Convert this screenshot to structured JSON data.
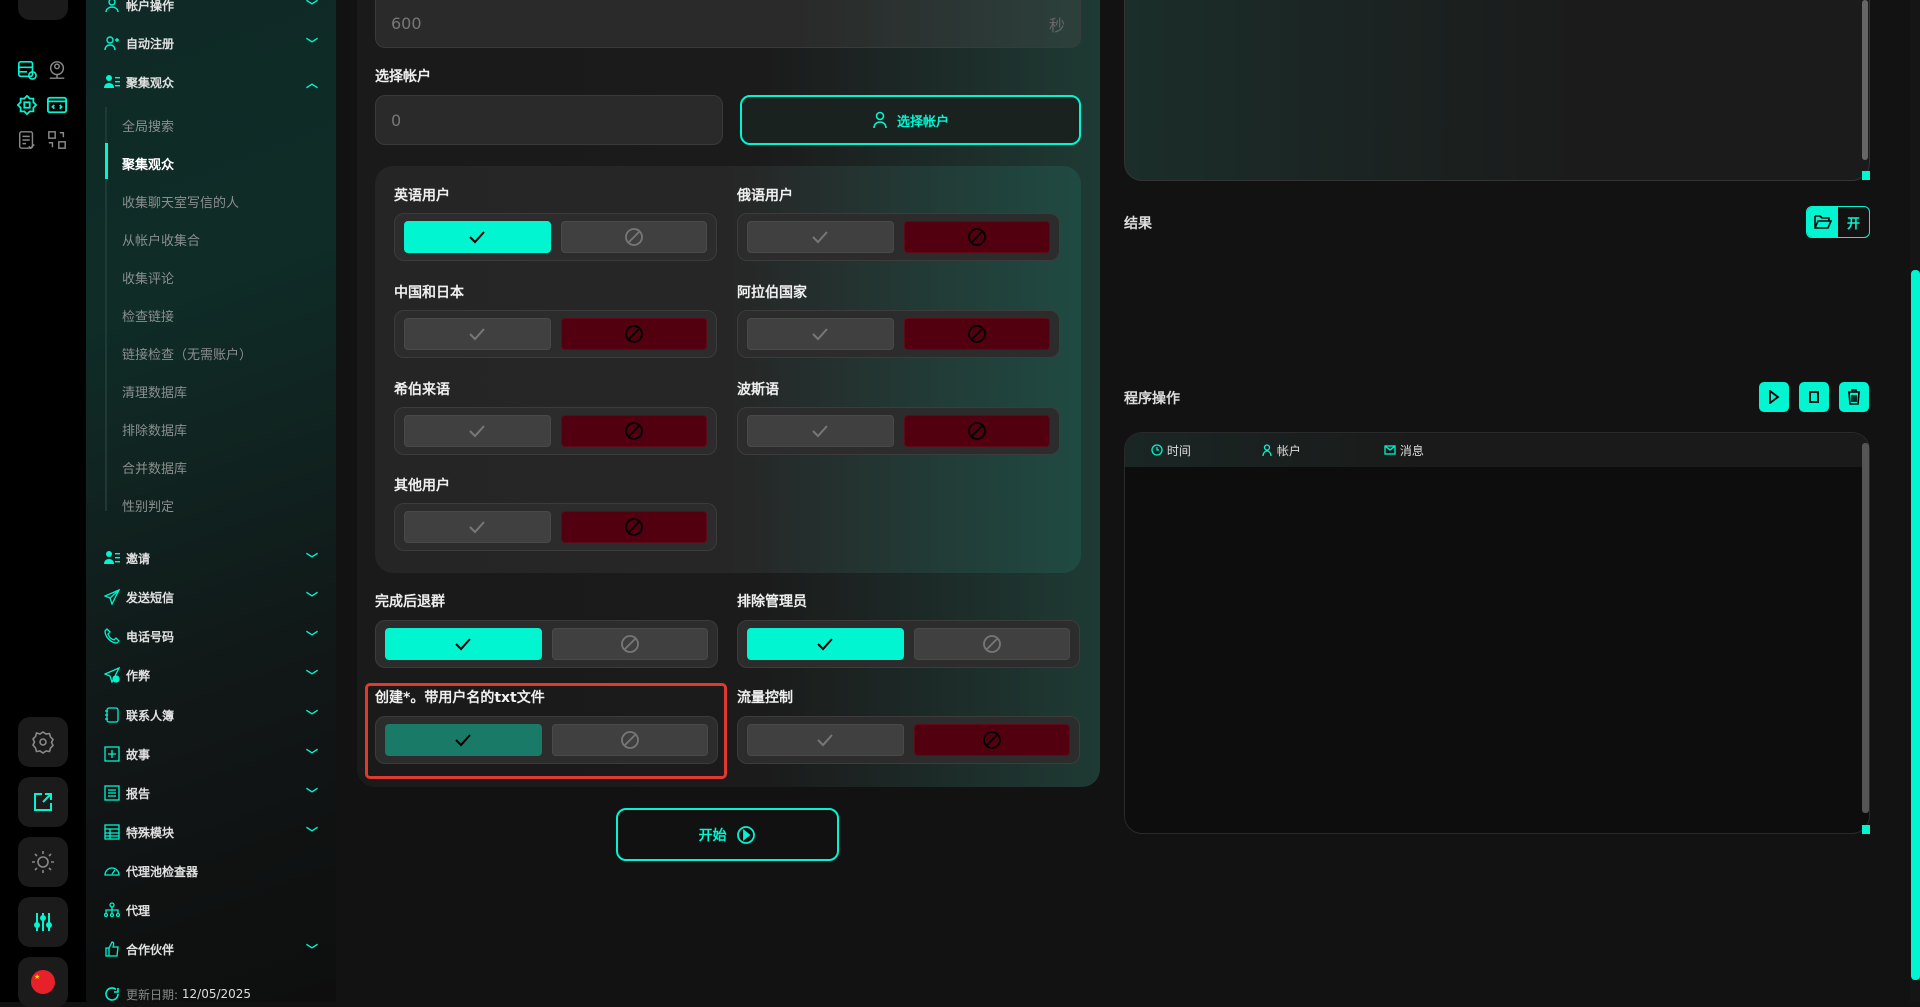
{
  "accent": "#00f5d0",
  "sidebar": {
    "groups": [
      {
        "label": "帐户操作",
        "icon": "user-icon",
        "expanded": false
      },
      {
        "label": "自动注册",
        "icon": "user-plus-icon",
        "expanded": false
      },
      {
        "label": "聚集观众",
        "icon": "user-list-icon",
        "expanded": true
      }
    ],
    "sub_items": [
      "全局搜索",
      "聚集观众",
      "收集聊天室写信的人",
      "从帐户收集合",
      "收集评论",
      "检查链接",
      "链接检查（无需账户）",
      "清理数据库",
      "排除数据库",
      "合并数据库",
      "性别判定"
    ],
    "active_sub": "聚集观众",
    "more_groups": [
      {
        "label": "邀请",
        "icon": "user-list-icon",
        "chevron": true
      },
      {
        "label": "发送短信",
        "icon": "send-icon",
        "chevron": true
      },
      {
        "label": "电话号码",
        "icon": "phone-icon",
        "chevron": true
      },
      {
        "label": "作弊",
        "icon": "send-plus-icon",
        "chevron": true
      },
      {
        "label": "联系人簿",
        "icon": "notebook-icon",
        "chevron": true
      },
      {
        "label": "故事",
        "icon": "plus-square-icon",
        "chevron": true
      },
      {
        "label": "报告",
        "icon": "report-icon",
        "chevron": true
      },
      {
        "label": "特殊模块",
        "icon": "table-icon",
        "chevron": true
      },
      {
        "label": "代理池检查器",
        "icon": "gauge-icon",
        "chevron": false
      },
      {
        "label": "代理",
        "icon": "network-icon",
        "chevron": false
      },
      {
        "label": "合作伙伴",
        "icon": "thumbs-up-icon",
        "chevron": true
      }
    ],
    "update_label": "更新日期:",
    "update_date": "12/05/2025"
  },
  "form": {
    "delay_value": "600",
    "delay_unit": "秒",
    "select_account_label": "选择帐户",
    "account_count": "0",
    "select_account_button": "选择帐户",
    "languages": [
      {
        "label": "英语用户",
        "state": "yes"
      },
      {
        "label": "俄语用户",
        "state": "no"
      },
      {
        "label": "中国和日本",
        "state": "no"
      },
      {
        "label": "阿拉伯国家",
        "state": "no"
      },
      {
        "label": "希伯来语",
        "state": "no"
      },
      {
        "label": "波斯语",
        "state": "no"
      },
      {
        "label": "其他用户",
        "state": "no"
      }
    ],
    "options": [
      {
        "label": "完成后退群",
        "state": "yes"
      },
      {
        "label": "排除管理员",
        "state": "yes"
      },
      {
        "label": "创建*。带用户名的txt文件",
        "state": "yes-dim"
      },
      {
        "label": "流量控制",
        "state": "no"
      }
    ],
    "start_button": "开始"
  },
  "right": {
    "results_label": "结果",
    "open_button": "开",
    "program_label": "程序操作",
    "log_columns": [
      {
        "label": "时间",
        "icon": "clock-icon"
      },
      {
        "label": "帐户",
        "icon": "user-icon"
      },
      {
        "label": "消息",
        "icon": "mail-icon"
      }
    ]
  }
}
